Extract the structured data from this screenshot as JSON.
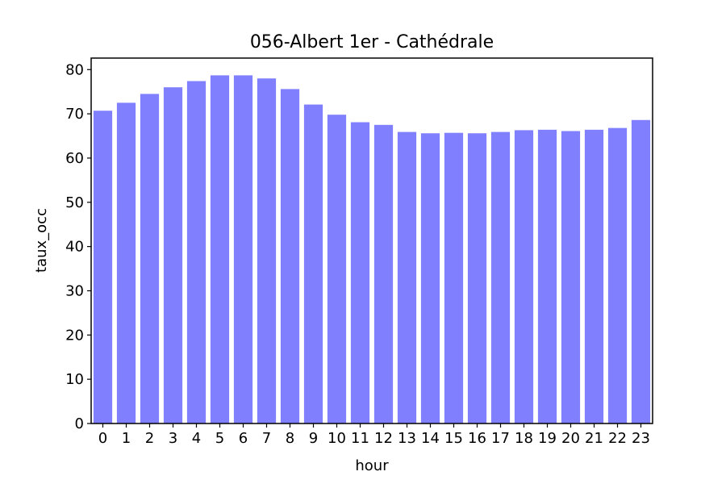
{
  "chart_data": {
    "type": "bar",
    "title": "056-Albert 1er - Cathédrale",
    "xlabel": "hour",
    "ylabel": "taux_occ",
    "categories": [
      "0",
      "1",
      "2",
      "3",
      "4",
      "5",
      "6",
      "7",
      "8",
      "9",
      "10",
      "11",
      "12",
      "13",
      "14",
      "15",
      "16",
      "17",
      "18",
      "19",
      "20",
      "21",
      "22",
      "23"
    ],
    "values": [
      70.7,
      72.5,
      74.5,
      76.0,
      77.4,
      78.7,
      78.7,
      78.0,
      75.6,
      72.1,
      69.8,
      68.1,
      67.5,
      65.9,
      65.6,
      65.7,
      65.6,
      65.9,
      66.3,
      66.4,
      66.1,
      66.4,
      66.8,
      68.6
    ],
    "ylim": [
      0,
      82.6
    ],
    "yticks": [
      0,
      10,
      20,
      30,
      40,
      50,
      60,
      70,
      80
    ],
    "bar_color": "#8080ff",
    "grid": false,
    "legend": "none"
  }
}
